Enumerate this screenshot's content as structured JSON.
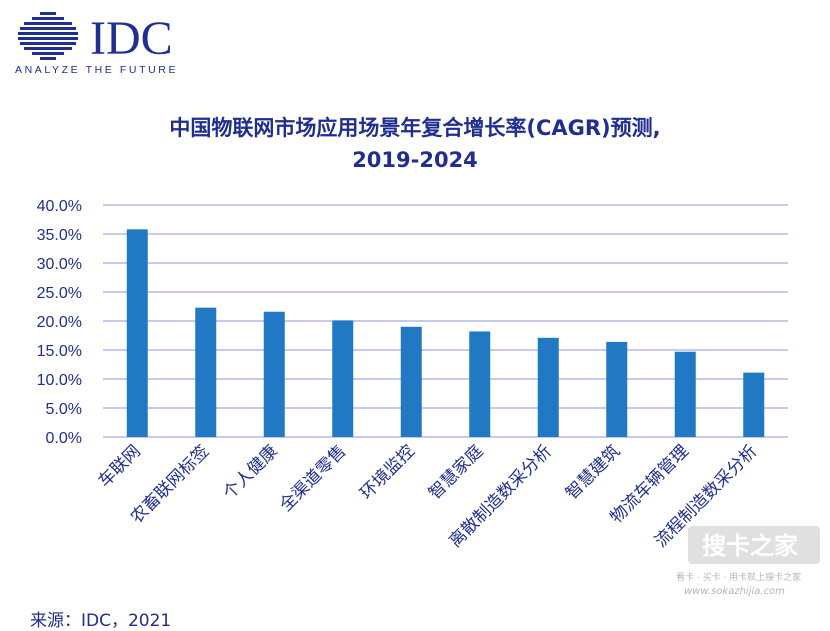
{
  "logo": {
    "name": "IDC",
    "tagline": "ANALYZE THE FUTURE",
    "color": "#1f2e8f"
  },
  "source": "来源：IDC，2021",
  "watermark": {
    "brand": "搜卡之家",
    "slogan": "看卡 · 买卡 · 用卡就上搜卡之家",
    "url": "www.sokazhijia.com"
  },
  "chart_data": {
    "type": "bar",
    "title": "中国物联网市场应用场景年复合增长率(CAGR)预测,",
    "subtitle": "2019-2024",
    "categories": [
      "车联网",
      "农畜联网标签",
      "个人健康",
      "全渠道零售",
      "环境监控",
      "智慧家庭",
      "离散制造数采分析",
      "智慧建筑",
      "物流车辆管理",
      "流程制造数采分析"
    ],
    "values": [
      35.8,
      22.3,
      21.6,
      20.1,
      19.0,
      18.2,
      17.1,
      16.4,
      14.7,
      11.1
    ],
    "ylim": [
      0,
      40
    ],
    "yticks": [
      "0.0%",
      "5.0%",
      "10.0%",
      "15.0%",
      "20.0%",
      "25.0%",
      "30.0%",
      "35.0%",
      "40.0%"
    ],
    "grid": true,
    "bar_color": "#2179c4",
    "grid_color": "#a7a9e3",
    "text_color": "#1f2e8f"
  }
}
